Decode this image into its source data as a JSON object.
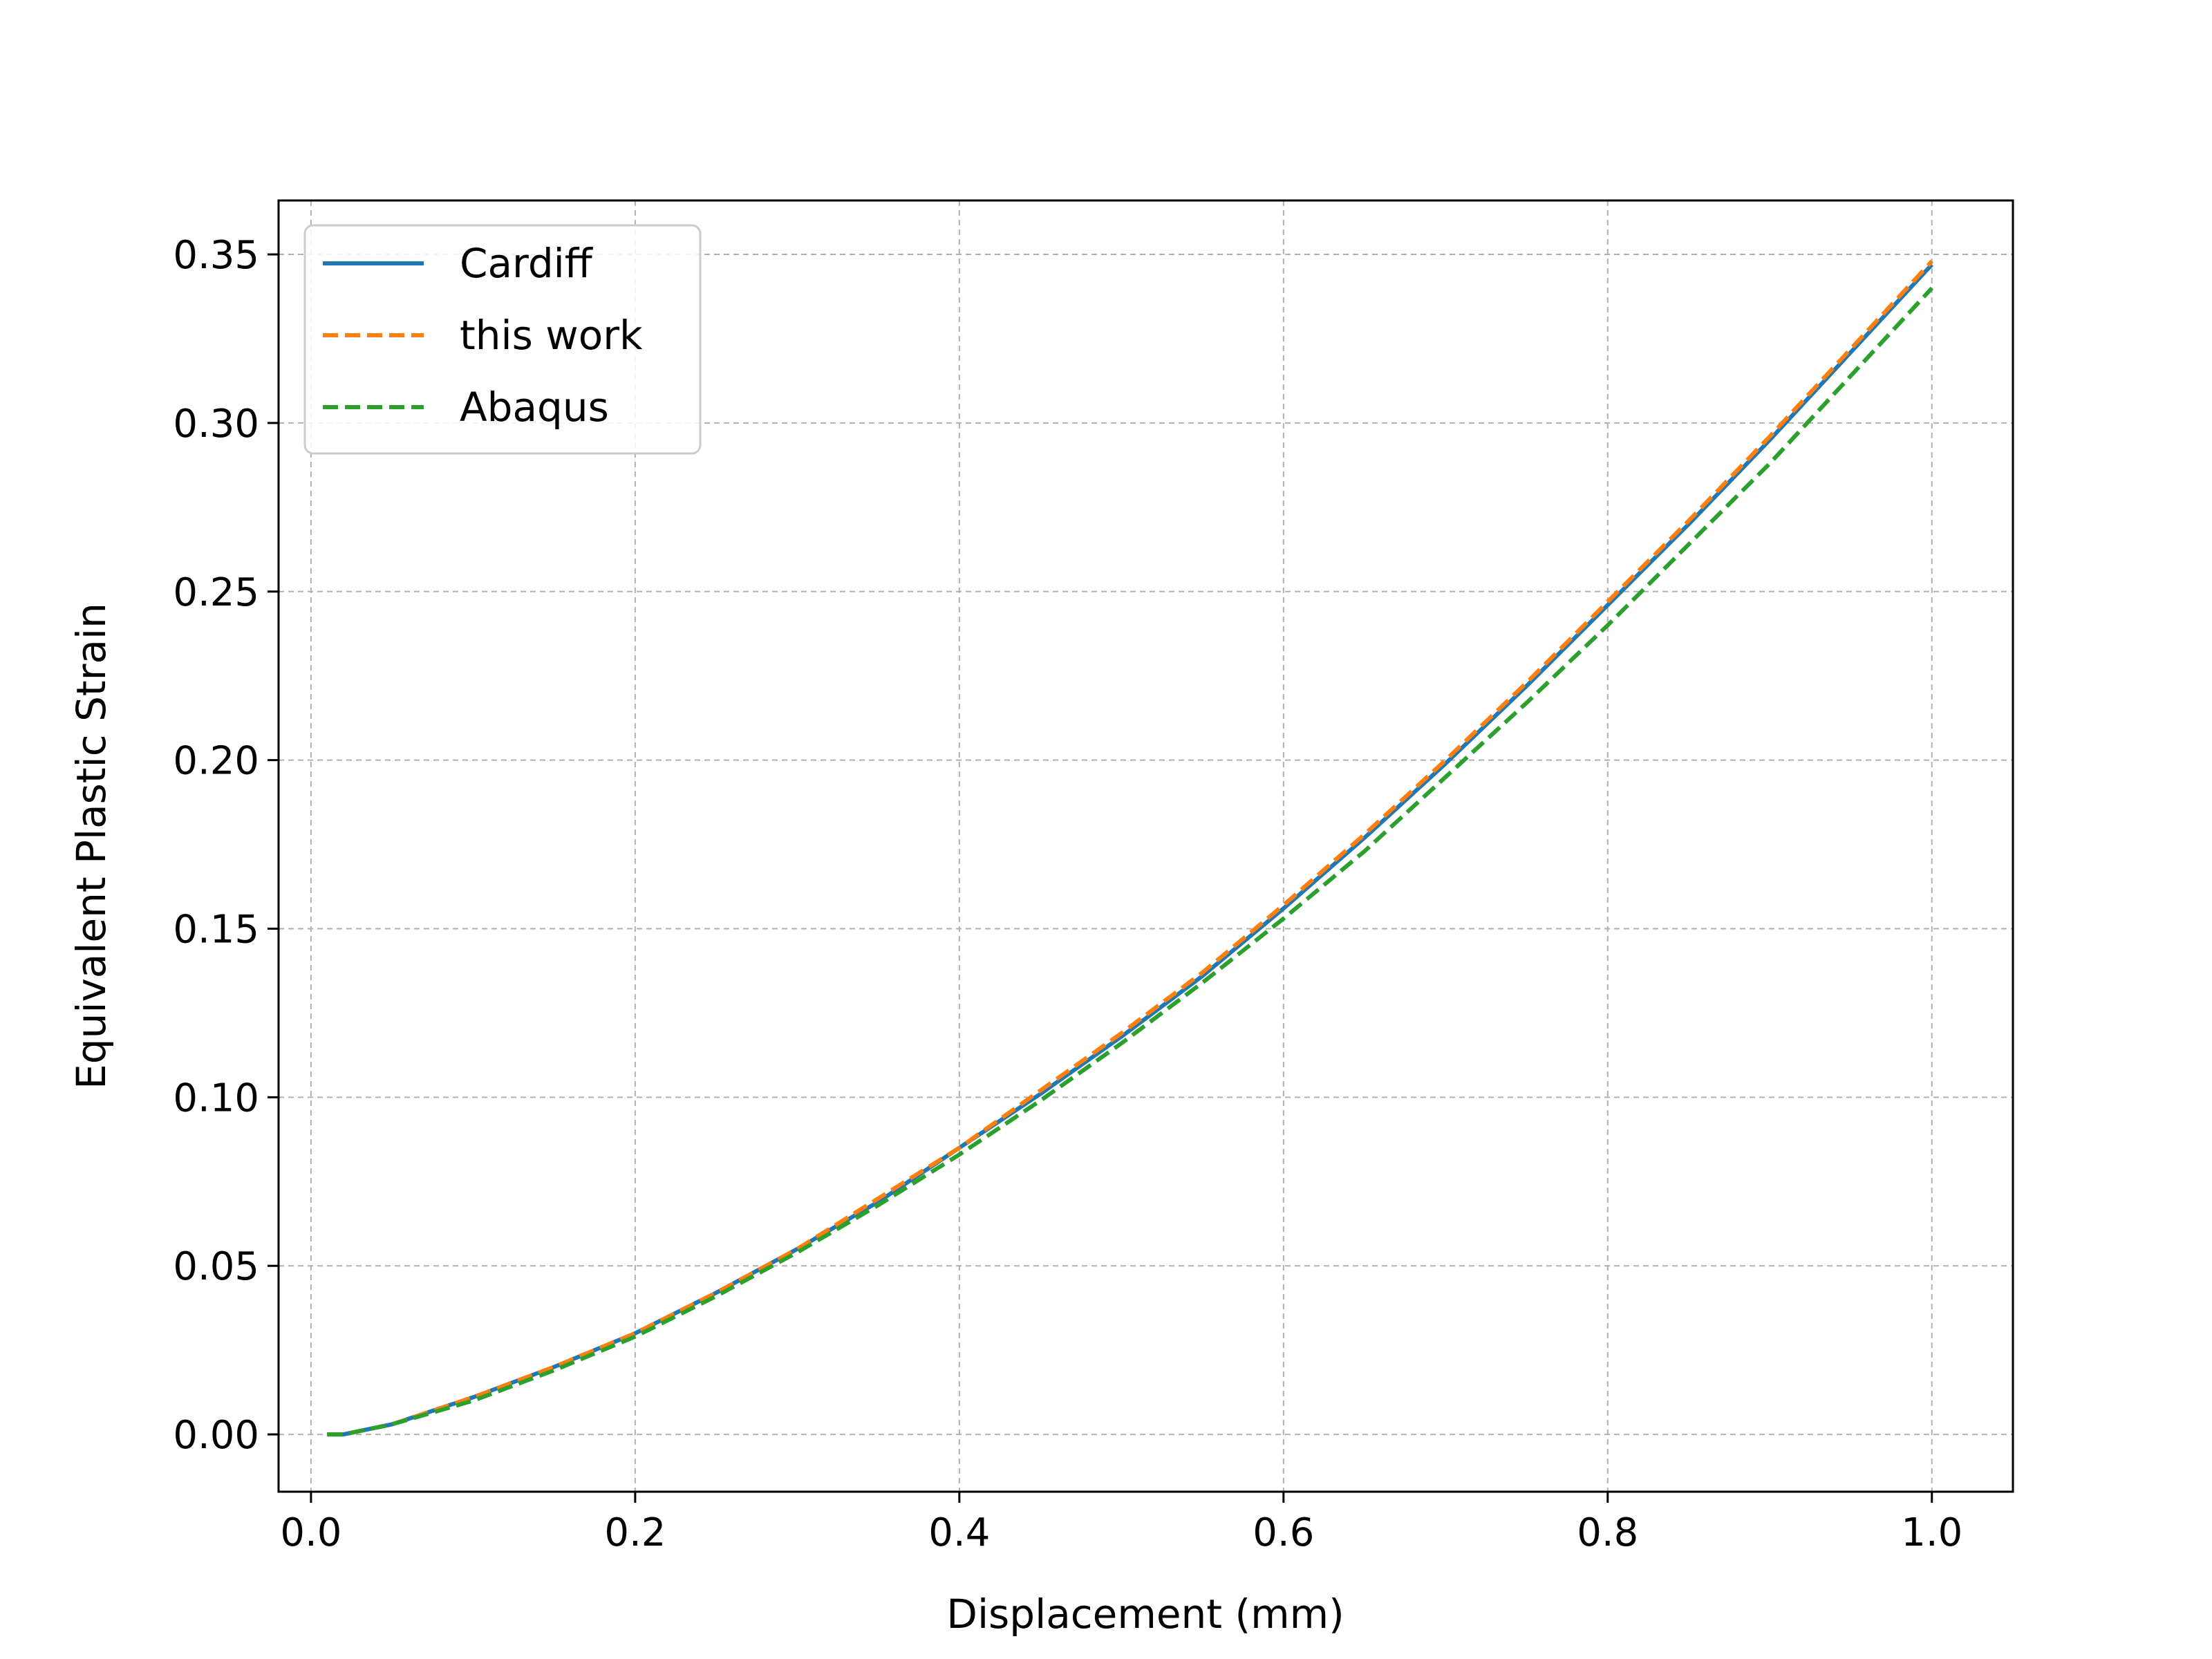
{
  "chart_data": {
    "type": "line",
    "xlabel": "Displacement (mm)",
    "ylabel": "Equivalent Plastic Strain",
    "xlim": [
      -0.02,
      1.05
    ],
    "ylim": [
      -0.017,
      0.366
    ],
    "xticks": [
      0.0,
      0.2,
      0.4,
      0.6,
      0.8,
      1.0
    ],
    "xtick_labels": [
      "0.0",
      "0.2",
      "0.4",
      "0.6",
      "0.8",
      "1.0"
    ],
    "yticks": [
      0.0,
      0.05,
      0.1,
      0.15,
      0.2,
      0.25,
      0.3,
      0.35
    ],
    "ytick_labels": [
      "0.00",
      "0.05",
      "0.10",
      "0.15",
      "0.20",
      "0.25",
      "0.30",
      "0.35"
    ],
    "grid": true,
    "legend_position": "top-left",
    "x": [
      0.01,
      0.02,
      0.03,
      0.05,
      0.1,
      0.15,
      0.2,
      0.25,
      0.3,
      0.35,
      0.4,
      0.45,
      0.5,
      0.55,
      0.6,
      0.65,
      0.7,
      0.75,
      0.8,
      0.85,
      0.9,
      0.95,
      1.0
    ],
    "series": [
      {
        "name": "Cardiff",
        "color": "#1f77b4",
        "style": "solid",
        "values": [
          0.0,
          0.0,
          0.001,
          0.003,
          0.011,
          0.02,
          0.03,
          0.042,
          0.055,
          0.069,
          0.085,
          0.101,
          0.118,
          0.136,
          0.156,
          0.177,
          0.199,
          0.222,
          0.246,
          0.27,
          0.295,
          0.321,
          0.347
        ]
      },
      {
        "name": "this work",
        "color": "#ff7f0e",
        "style": "dashed",
        "values": [
          0.0,
          0.0,
          0.001,
          0.003,
          0.011,
          0.02,
          0.03,
          0.042,
          0.055,
          0.07,
          0.085,
          0.102,
          0.119,
          0.137,
          0.157,
          0.178,
          0.2,
          0.223,
          0.247,
          0.271,
          0.296,
          0.322,
          0.348
        ]
      },
      {
        "name": "Abaqus",
        "color": "#2ca02c",
        "style": "dashed",
        "values": [
          0.0,
          0.0,
          0.001,
          0.003,
          0.01,
          0.019,
          0.029,
          0.041,
          0.054,
          0.068,
          0.083,
          0.099,
          0.116,
          0.134,
          0.153,
          0.173,
          0.195,
          0.217,
          0.24,
          0.264,
          0.288,
          0.314,
          0.34
        ]
      }
    ]
  }
}
